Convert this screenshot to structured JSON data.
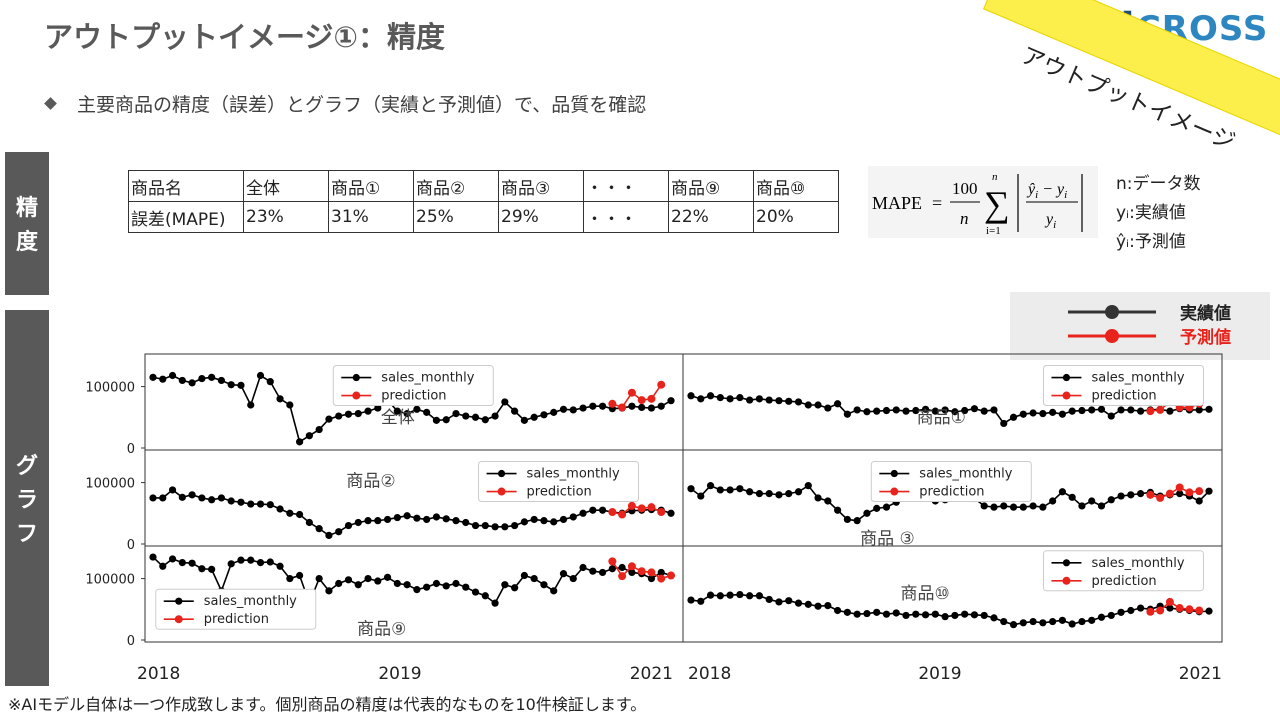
{
  "header": {
    "title": "アウトプットイメージ①：精度",
    "bullet": "主要商品の精度（誤差）とグラフ（実績と予測値）で、品質を確認",
    "banner": "アウトプットイメージ",
    "logo_ai": "AI",
    "logo_rest": "CROSS"
  },
  "side_labels": {
    "accuracy": [
      "精",
      "度"
    ],
    "graph": [
      "グ",
      "ラ",
      "フ"
    ]
  },
  "table": {
    "rows": [
      [
        "商品名",
        "全体",
        "商品①",
        "商品②",
        "商品③",
        "・・・",
        "商品⑨",
        "商品⑩"
      ],
      [
        "誤差(MAPE)",
        "23%",
        "31%",
        "25%",
        "29%",
        "・・・",
        "22%",
        "20%"
      ]
    ]
  },
  "formula": {
    "lhs": "MAPE",
    "eq": "=",
    "num": "100",
    "den": "n",
    "sum_top": "n",
    "sum_bot": "i=1",
    "legend": [
      "n:データ数",
      "yᵢ:実績値",
      "ŷᵢ:予測値"
    ]
  },
  "big_legend": {
    "actual": "実績値",
    "predicted": "予測値",
    "actual_color": "#333333",
    "predicted_color": "#e8231b"
  },
  "footnote": "※AIモデル自体は一つ作成致します。個別商品の精度は代表的なものを10件検証します。",
  "chart_data": {
    "type": "line",
    "x_ticks": [
      "2018",
      "2019",
      "2021"
    ],
    "y_ticks": [
      "100000",
      "0"
    ],
    "ylim": [
      0,
      140000
    ],
    "series_names": [
      "sales_monthly",
      "prediction"
    ],
    "colors": {
      "actual": "#000000",
      "prediction": "#e8231b"
    },
    "panels": [
      {
        "label": "全体",
        "actual": [
          115000,
          112000,
          118000,
          110000,
          106000,
          113000,
          115000,
          110000,
          103000,
          102000,
          70000,
          118000,
          108000,
          80000,
          70000,
          10000,
          20000,
          30000,
          47000,
          52000,
          55000,
          56000,
          60000,
          65000,
          78000,
          60000,
          56000,
          63000,
          58000,
          45000,
          46000,
          56000,
          52000,
          50000,
          46000,
          52000,
          75000,
          60000,
          45000,
          50000,
          54000,
          58000,
          63000,
          62000,
          65000,
          68000,
          68000,
          64000,
          65000,
          68000,
          66000,
          65000,
          68000,
          77000
        ],
        "pred_start": 47,
        "prediction": [
          72000,
          66000,
          90000,
          78000,
          80000,
          103000
        ]
      },
      {
        "label": "商品①",
        "actual": [
          85000,
          80000,
          85000,
          82000,
          80000,
          82000,
          78000,
          80000,
          78000,
          77000,
          76000,
          75000,
          70000,
          70000,
          65000,
          72000,
          55000,
          62000,
          59000,
          60000,
          61000,
          62000,
          60000,
          61000,
          63000,
          60000,
          62000,
          59000,
          61000,
          64000,
          60000,
          62000,
          40000,
          50000,
          55000,
          57000,
          56000,
          58000,
          55000,
          60000,
          61000,
          62000,
          63000,
          52000,
          62000,
          62000,
          60000,
          62000,
          63000,
          60000,
          64000,
          62000,
          62000,
          63000
        ],
        "pred_start": 47,
        "prediction": [
          60000,
          62000,
          75000,
          66000,
          66000,
          72000
        ]
      },
      {
        "label": "商品②",
        "actual": [
          75000,
          75000,
          88000,
          76000,
          80000,
          75000,
          72000,
          75000,
          70000,
          68000,
          65000,
          65000,
          64000,
          57000,
          50000,
          48000,
          35000,
          25000,
          14000,
          20000,
          30000,
          35000,
          38000,
          38000,
          40000,
          43000,
          46000,
          42000,
          40000,
          44000,
          41000,
          38000,
          35000,
          30000,
          30000,
          28000,
          28000,
          30000,
          36000,
          40000,
          38000,
          36000,
          40000,
          44000,
          50000,
          55000,
          55000,
          52000,
          50000,
          54000,
          55000,
          56000,
          55000,
          50000
        ],
        "pred_start": 47,
        "prediction": [
          52000,
          48000,
          62000,
          58000,
          60000,
          52000
        ]
      },
      {
        "label": "商品 ③",
        "actual": [
          90000,
          78000,
          95000,
          88000,
          88000,
          90000,
          85000,
          82000,
          82000,
          80000,
          82000,
          85000,
          95000,
          75000,
          70000,
          55000,
          40000,
          38000,
          50000,
          58000,
          60000,
          68000,
          75000,
          80000,
          88000,
          70000,
          72000,
          75000,
          75000,
          74000,
          62000,
          60000,
          62000,
          60000,
          60000,
          62000,
          60000,
          70000,
          85000,
          76000,
          62000,
          70000,
          62000,
          72000,
          78000,
          80000,
          82000,
          84000,
          78000,
          80000,
          82000,
          78000,
          70000,
          86000
        ],
        "pred_start": 47,
        "prediction": [
          80000,
          75000,
          82000,
          92000,
          84000,
          86000
        ]
      },
      {
        "label": "商品⑨",
        "actual": [
          135000,
          120000,
          132000,
          126000,
          125000,
          116000,
          115000,
          80000,
          124000,
          130000,
          130000,
          126000,
          127000,
          120000,
          100000,
          105000,
          60000,
          100000,
          80000,
          92000,
          98000,
          90000,
          100000,
          96000,
          102000,
          92000,
          90000,
          82000,
          86000,
          92000,
          88000,
          92000,
          86000,
          78000,
          72000,
          60000,
          90000,
          85000,
          105000,
          100000,
          90000,
          80000,
          108000,
          100000,
          118000,
          112000,
          110000,
          116000,
          118000,
          110000,
          108000,
          100000,
          110000,
          105000
        ],
        "pred_start": 47,
        "prediction": [
          128000,
          104000,
          120000,
          112000,
          110000,
          100000,
          105000
        ]
      },
      {
        "label": "商品⑩",
        "actual": [
          65000,
          63000,
          73000,
          72000,
          73000,
          74000,
          72000,
          72000,
          66000,
          62000,
          64000,
          60000,
          58000,
          55000,
          56000,
          48000,
          45000,
          42000,
          43000,
          45000,
          42000,
          44000,
          40000,
          42000,
          41000,
          42000,
          38000,
          40000,
          42000,
          41000,
          40000,
          36000,
          30000,
          25000,
          28000,
          30000,
          28000,
          30000,
          32000,
          26000,
          30000,
          32000,
          37000,
          40000,
          45000,
          48000,
          52000,
          50000,
          55000,
          52000,
          50000,
          48000,
          46000,
          47000
        ],
        "pred_start": 47,
        "prediction": [
          46000,
          48000,
          62000,
          52000,
          50000,
          48000
        ]
      }
    ]
  }
}
